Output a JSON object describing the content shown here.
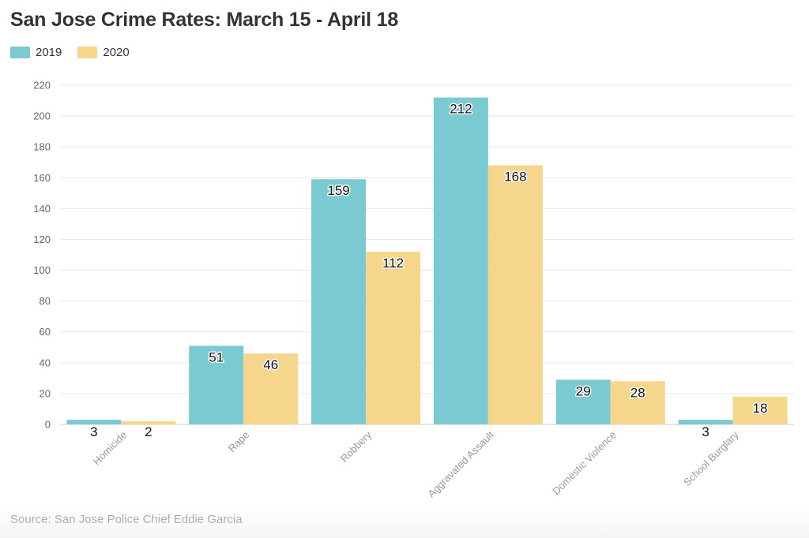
{
  "title": "San Jose Crime Rates: March 15 - April 18",
  "source": "Source: San Jose Police Chief Eddie Garcia",
  "legend": [
    {
      "label": "2019",
      "color": "#7bcad1"
    },
    {
      "label": "2020",
      "color": "#f6d58c"
    }
  ],
  "chart_data": {
    "type": "bar",
    "title": "San Jose Crime Rates: March 15 - April 18",
    "categories": [
      "Homicide",
      "Rape",
      "Robbery",
      "Aggravated Assault",
      "Domestic Violence",
      "School Burglary"
    ],
    "series": [
      {
        "name": "2019",
        "color": "#7bcad1",
        "values": [
          3,
          51,
          159,
          212,
          29,
          3
        ]
      },
      {
        "name": "2020",
        "color": "#f6d58c",
        "values": [
          2,
          46,
          112,
          168,
          28,
          18
        ]
      }
    ],
    "yticks": [
      0,
      20,
      40,
      60,
      80,
      100,
      120,
      140,
      160,
      180,
      200,
      220
    ],
    "ylim": [
      0,
      220
    ],
    "grid": true,
    "legend_position": "top-left"
  }
}
